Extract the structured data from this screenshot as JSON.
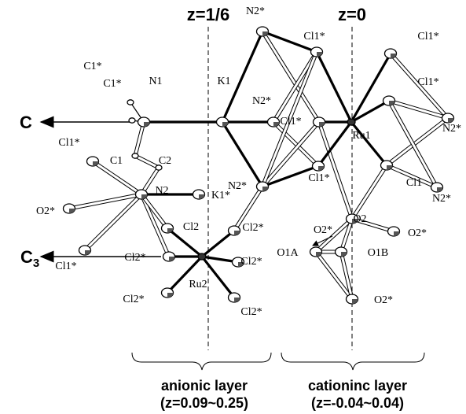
{
  "header": {
    "z_left": "z=1/6",
    "z_right": "z=0"
  },
  "axes": {
    "c": "C",
    "c3": {
      "letter": "C",
      "subscript": "3"
    }
  },
  "atoms": [
    "N2*",
    "Cl1*",
    "Cl1*",
    "C1*",
    "C1*",
    "N1",
    "K1",
    "N2*",
    "Cl1*",
    "Ru1",
    "Cl1*",
    "N2*",
    "N2*",
    "Cl1*",
    "Cl1",
    "N2*",
    "C1",
    "C2",
    "Cl1*",
    "N2",
    "K1*",
    "O2*",
    "Cl1*",
    "Cl2",
    "Cl2*",
    "Cl2*",
    "Ru2",
    "Cl2*",
    "Cl2*",
    "Cl2*",
    "O2",
    "O2*",
    "O2*",
    "O1A",
    "O1B",
    "O2*"
  ],
  "layers": [
    {
      "name": "anionic layer",
      "range": "(z=0.09~0.25)"
    },
    {
      "name": "cationinc layer",
      "range": "(z=-0.04~0.04)"
    }
  ]
}
